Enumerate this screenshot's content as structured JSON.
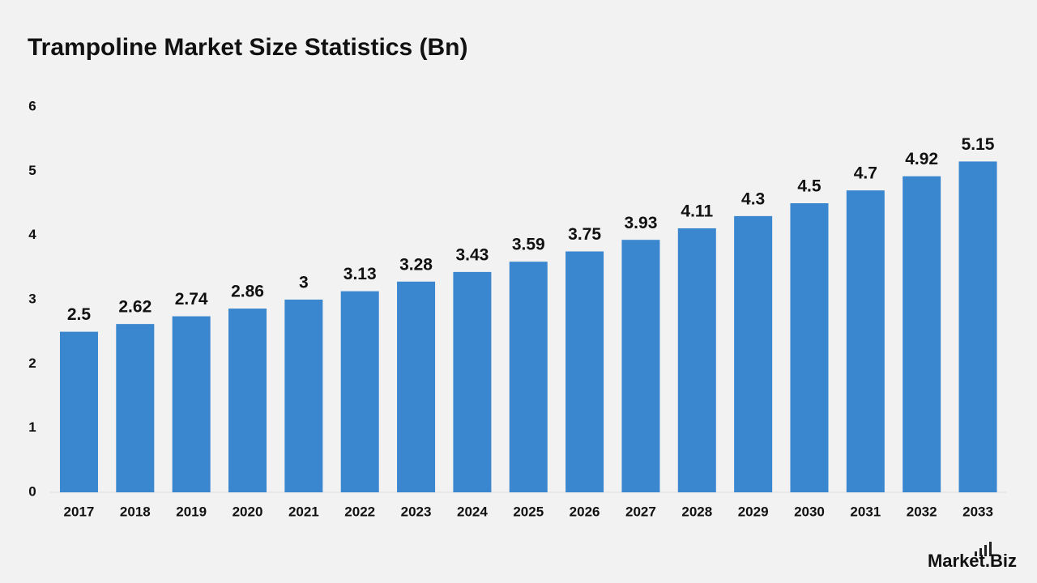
{
  "chart_data": {
    "type": "bar",
    "title": "Trampoline Market Size Statistics (Bn)",
    "categories": [
      "2017",
      "2018",
      "2019",
      "2020",
      "2021",
      "2022",
      "2023",
      "2024",
      "2025",
      "2026",
      "2027",
      "2028",
      "2029",
      "2030",
      "2031",
      "2032",
      "2033"
    ],
    "values": [
      2.5,
      2.62,
      2.74,
      2.86,
      3,
      3.13,
      3.28,
      3.43,
      3.59,
      3.75,
      3.93,
      4.11,
      4.3,
      4.5,
      4.7,
      4.92,
      5.15
    ],
    "color": "#3a86cf",
    "ylim": [
      0,
      6
    ],
    "yticks": [
      0,
      1,
      2,
      3,
      4,
      5,
      6
    ],
    "grid": false
  },
  "brand": "Market.Biz"
}
